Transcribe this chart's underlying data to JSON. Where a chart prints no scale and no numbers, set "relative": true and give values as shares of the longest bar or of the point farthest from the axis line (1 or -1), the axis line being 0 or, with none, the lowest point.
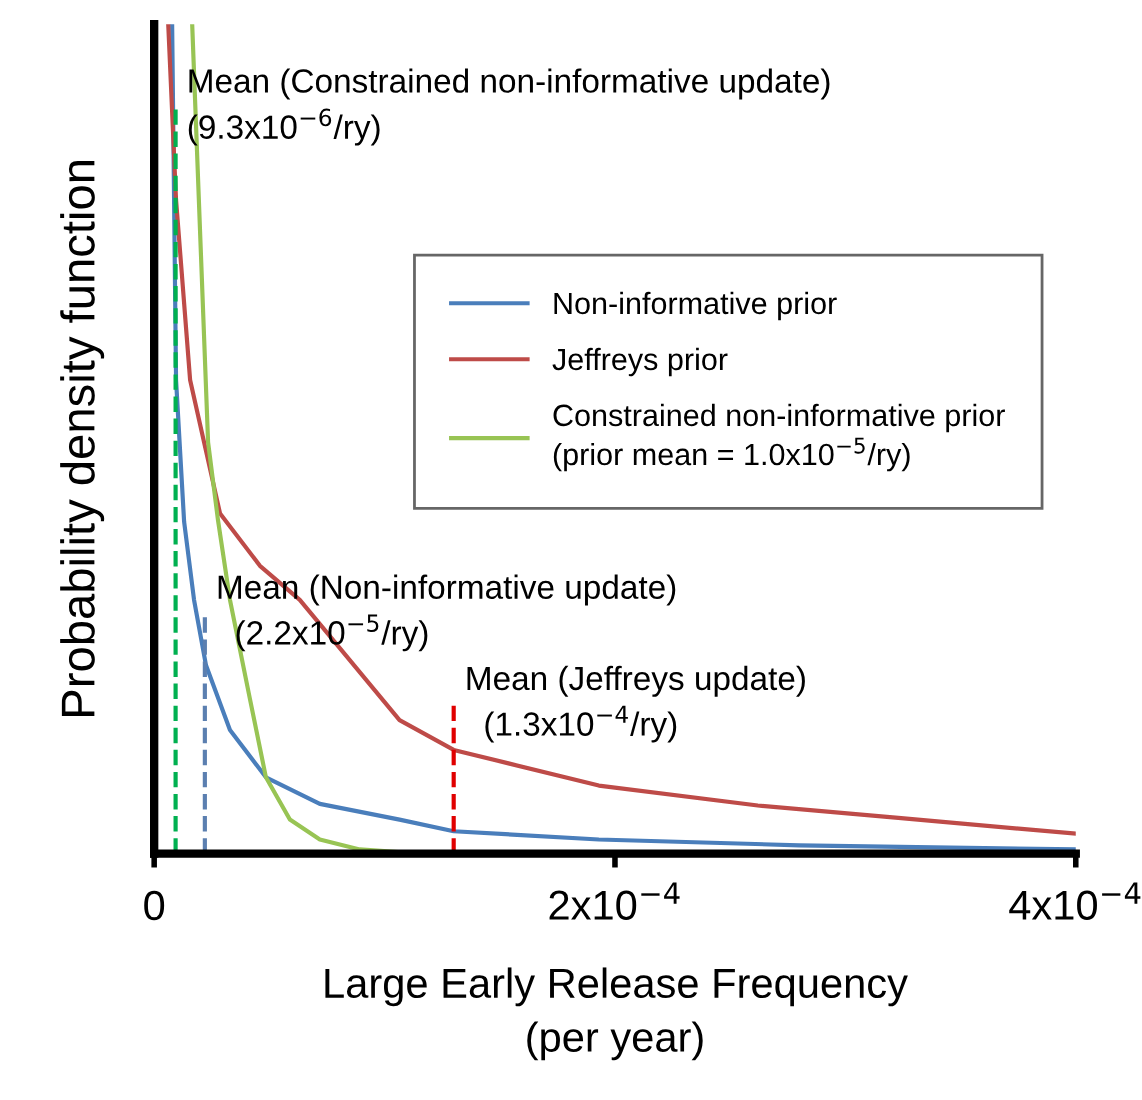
{
  "chart_data": {
    "type": "line",
    "relative": true,
    "xlabel": "Large Early Release Frequency\n(per year)",
    "ylabel": "Probability density function",
    "xlim": [
      0,
      0.0004
    ],
    "xticks": [
      {
        "value": 0,
        "label": "0"
      },
      {
        "value": 0.0002,
        "label": "2x10$^{−4}$"
      },
      {
        "value": 0.0004,
        "label": "4x10$^{−4}$"
      }
    ],
    "legend": "top right",
    "marker": "none",
    "line_style": "solid",
    "series": [
      {
        "name": "Non-informative prior",
        "color": "#4a7ebb",
        "x": [
          7.8e-06,
          9.5e-06,
          1.3e-05,
          1.73e-05,
          2.25e-05,
          3.29e-05,
          4.85e-05,
          7.19e-05,
          0.0001065,
          0.00013,
          0.000193,
          0.00028,
          0.0004
        ],
        "values": [
          1.0,
          0.571,
          0.4,
          0.306,
          0.227,
          0.149,
          0.092,
          0.06,
          0.041,
          0.027,
          0.017,
          0.01,
          0.005
        ]
      },
      {
        "name": "Jeffreys prior",
        "color": "#be4b48",
        "x": [
          6.1e-06,
          9.5e-06,
          1.56e-05,
          2.86e-05,
          4.59e-05,
          6.32e-05,
          0.0001065,
          0.00013,
          0.000193,
          0.000262,
          0.000323,
          0.0004
        ],
        "values": [
          1.0,
          0.788,
          0.571,
          0.41,
          0.347,
          0.306,
          0.161,
          0.125,
          0.082,
          0.058,
          0.043,
          0.024
        ]
      },
      {
        "name": "Constrained non-informative prior\n(prior mean = 1.0x10$^{−5}$/ry)",
        "color": "#98c454",
        "x": [
          1.65e-05,
          2.34e-05,
          2.77e-05,
          3.29e-05,
          4.16e-05,
          4.85e-05,
          5.89e-05,
          7.19e-05,
          8.92e-05,
          0.000115,
          0.0004
        ],
        "values": [
          1.0,
          0.496,
          0.402,
          0.306,
          0.186,
          0.092,
          0.041,
          0.017,
          0.005,
          0,
          0
        ]
      }
    ],
    "ref_lines": [
      {
        "axis": "x",
        "value": 9.3e-06,
        "color": "#00b050",
        "line_style": "dashed"
      },
      {
        "axis": "x",
        "value": 2.2e-05,
        "color": "#5b7fb0",
        "line_style": "dashed"
      },
      {
        "axis": "x",
        "value": 0.00013,
        "color": "#e00000",
        "line_style": "dashed"
      }
    ],
    "annotations": [
      {
        "text": "Mean (Constrained non-informative update)\n(9.3x10$^{−6}$/ry)",
        "x": 9.3e-06,
        "y": 0.9
      },
      {
        "text": "Mean (Non-informative update)\n  (2.2x10$^{−5}$/ry)",
        "x": 2.2e-05,
        "y": 0.29
      },
      {
        "text": "Mean (Jeffreys update)\n  (1.3x10$^{−4}$/ry)",
        "x": 0.00013,
        "y": 0.18
      }
    ]
  }
}
